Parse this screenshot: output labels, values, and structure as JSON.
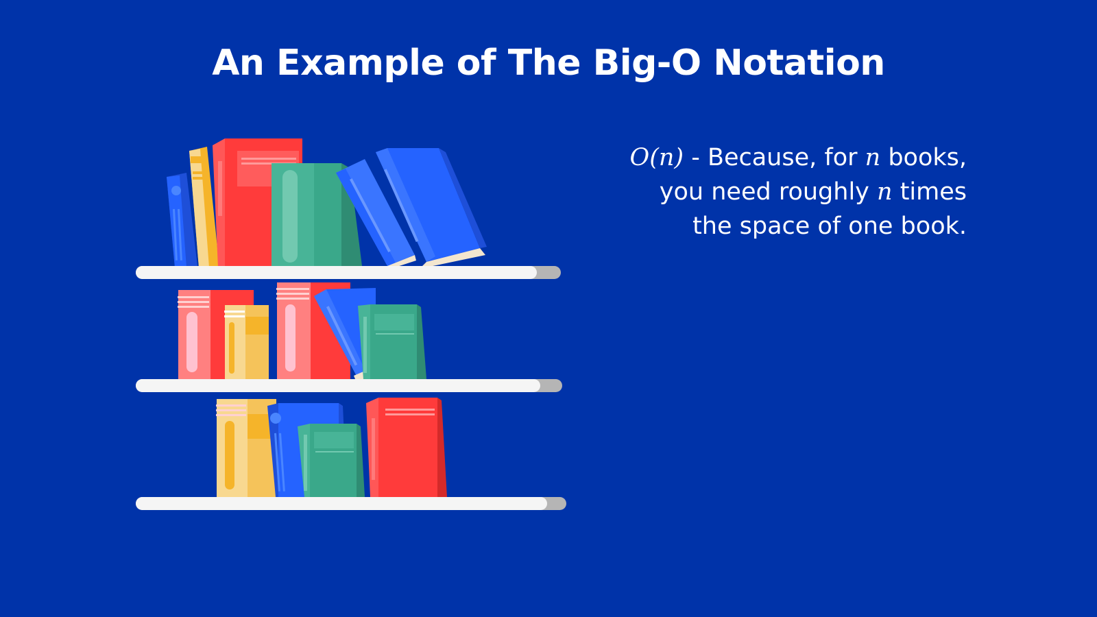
{
  "slide": {
    "title": "An Example of The Big-O Notation",
    "explanation": {
      "line1": {
        "math": "O(n)",
        "text_a": " - Because, for ",
        "var": "n",
        "text_b": " books,"
      },
      "line2": {
        "text_a": "you need roughly ",
        "var": "n",
        "text_b": " times"
      },
      "line3": {
        "text": "the space of one book."
      }
    }
  },
  "colors": {
    "background": "#0033a9",
    "shelf": "#f5f5f5",
    "shelf_shadow": "#b5b5b5",
    "book_blue": "#2563ff",
    "book_blue_dark": "#1e4fd8",
    "book_red": "#ff3b3b",
    "book_red_light": "#ff8080",
    "book_green": "#3aa88a",
    "book_green_dark": "#2f8c73",
    "book_yellow": "#f5b42a",
    "book_cream": "#f8d890"
  },
  "illustration": {
    "icon": "bookshelf-icon",
    "shelves": 3
  }
}
